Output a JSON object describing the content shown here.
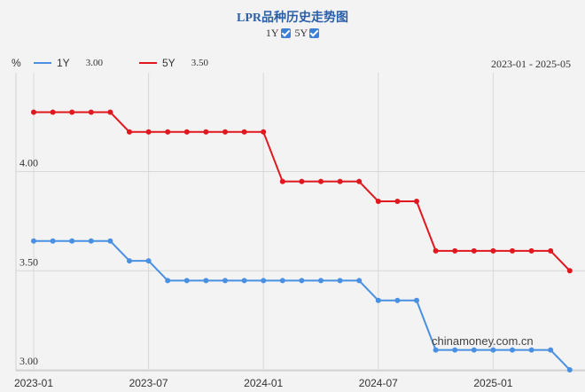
{
  "page": {
    "title": "LPR品种历史走势图",
    "toggles": [
      {
        "label": "1Y",
        "checked": true
      },
      {
        "label": "5Y",
        "checked": true
      }
    ],
    "unit": "%",
    "date_range": "2023-01 - 2025-05",
    "watermark": "chinamoney.com.cn"
  },
  "legend": [
    {
      "name": "1Y",
      "value": "3.00",
      "color": "#4a90e2"
    },
    {
      "name": "5Y",
      "value": "3.50",
      "color": "#e0171e"
    }
  ],
  "chart_data": {
    "type": "line",
    "x": [
      "2023-01",
      "2023-02",
      "2023-03",
      "2023-04",
      "2023-05",
      "2023-06",
      "2023-07",
      "2023-08",
      "2023-09",
      "2023-10",
      "2023-11",
      "2023-12",
      "2024-01",
      "2024-02",
      "2024-03",
      "2024-04",
      "2024-05",
      "2024-06",
      "2024-07",
      "2024-08",
      "2024-09",
      "2024-10",
      "2024-11",
      "2024-12",
      "2025-01",
      "2025-02",
      "2025-03",
      "2025-04",
      "2025-05"
    ],
    "x_tick_labels": [
      "2023-01",
      "2023-07",
      "2024-01",
      "2024-07",
      "2025-01"
    ],
    "y_tick_labels": [
      "3.00",
      "3.50",
      "4.00"
    ],
    "ylim": [
      3.0,
      4.3
    ],
    "grid": true,
    "series": [
      {
        "name": "1Y",
        "color": "#4a90e2",
        "values": [
          3.65,
          3.65,
          3.65,
          3.65,
          3.65,
          3.55,
          3.55,
          3.45,
          3.45,
          3.45,
          3.45,
          3.45,
          3.45,
          3.45,
          3.45,
          3.45,
          3.45,
          3.45,
          3.35,
          3.35,
          3.35,
          3.1,
          3.1,
          3.1,
          3.1,
          3.1,
          3.1,
          3.1,
          3.0
        ]
      },
      {
        "name": "5Y",
        "color": "#e0171e",
        "values": [
          4.3,
          4.3,
          4.3,
          4.3,
          4.3,
          4.2,
          4.2,
          4.2,
          4.2,
          4.2,
          4.2,
          4.2,
          4.2,
          3.95,
          3.95,
          3.95,
          3.95,
          3.95,
          3.85,
          3.85,
          3.85,
          3.6,
          3.6,
          3.6,
          3.6,
          3.6,
          3.6,
          3.6,
          3.5
        ]
      }
    ]
  }
}
